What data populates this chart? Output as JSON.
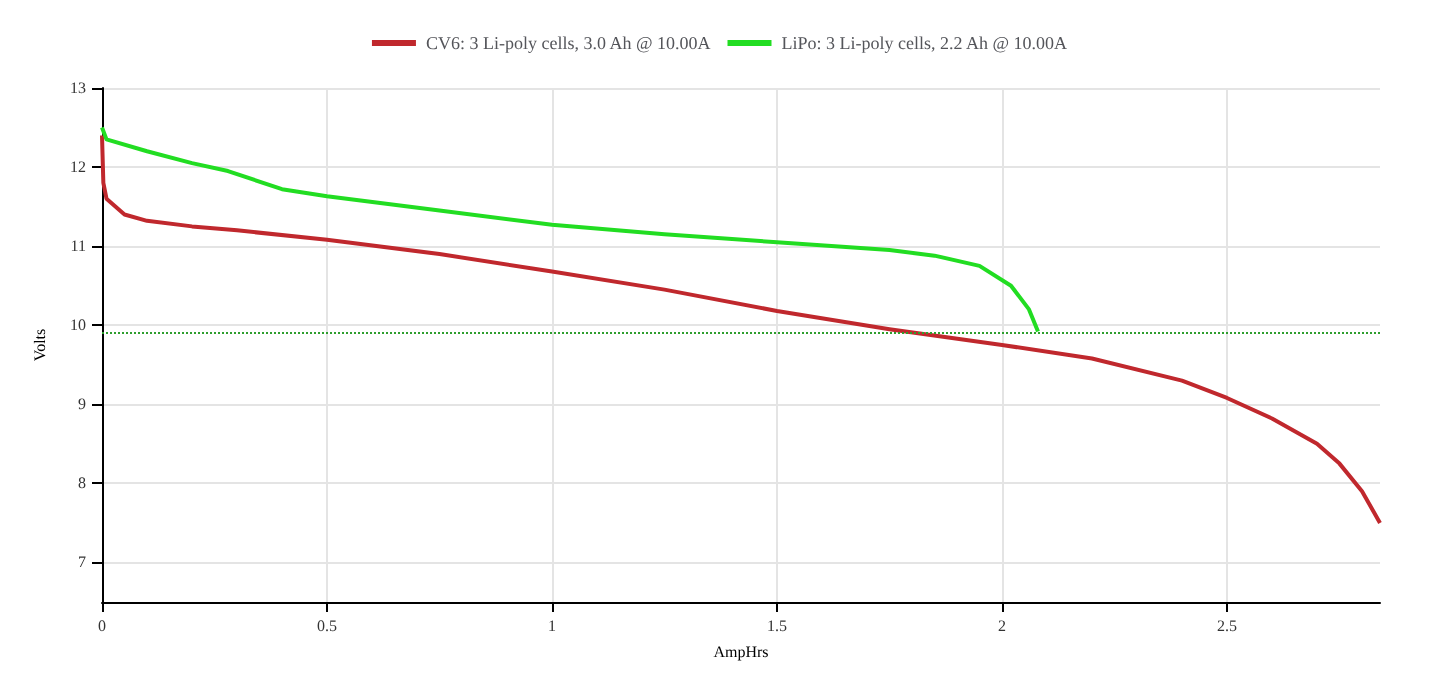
{
  "chart_data": {
    "type": "line",
    "xlabel": "AmpHrs",
    "ylabel": "Volts",
    "xlim": [
      0,
      2.84
    ],
    "xticks": [
      0,
      0.5,
      1,
      1.5,
      2,
      2.5
    ],
    "ylim": [
      6.5,
      13
    ],
    "yticks": [
      7,
      8,
      9,
      10,
      11,
      12,
      13
    ],
    "grid": true,
    "legend": "top",
    "marker": "none",
    "line_style": "solid",
    "series": [
      {
        "name": "CV6: 3 Li-poly cells, 3.0 Ah @ 10.00A",
        "color": "#c0282d",
        "x": [
          0,
          0.003,
          0.01,
          0.05,
          0.1,
          0.2,
          0.3,
          0.5,
          0.75,
          1,
          1.25,
          1.5,
          1.75,
          2,
          2.2,
          2.4,
          2.5,
          2.6,
          2.7,
          2.75,
          2.8,
          2.84
        ],
        "values": [
          12.4,
          11.8,
          11.6,
          11.4,
          11.32,
          11.25,
          11.2,
          11.08,
          10.9,
          10.68,
          10.45,
          10.18,
          9.95,
          9.75,
          9.58,
          9.3,
          9.08,
          8.82,
          8.5,
          8.25,
          7.9,
          7.5
        ]
      },
      {
        "name": "LiPo: 3 Li-poly cells, 2.2 Ah @ 10.00A",
        "color": "#22dd22",
        "x": [
          0,
          0.01,
          0.1,
          0.2,
          0.28,
          0.4,
          0.5,
          0.75,
          1,
          1.25,
          1.5,
          1.75,
          1.85,
          1.95,
          2.02,
          2.06,
          2.08
        ],
        "values": [
          12.5,
          12.35,
          12.2,
          12.05,
          11.95,
          11.72,
          11.63,
          11.45,
          11.27,
          11.15,
          11.05,
          10.95,
          10.88,
          10.75,
          10.5,
          10.2,
          9.92
        ]
      }
    ],
    "ref_lines": [
      {
        "axis": "y",
        "value": 9.9,
        "color": "#2e9e2e",
        "line_style": "dotted"
      }
    ]
  }
}
